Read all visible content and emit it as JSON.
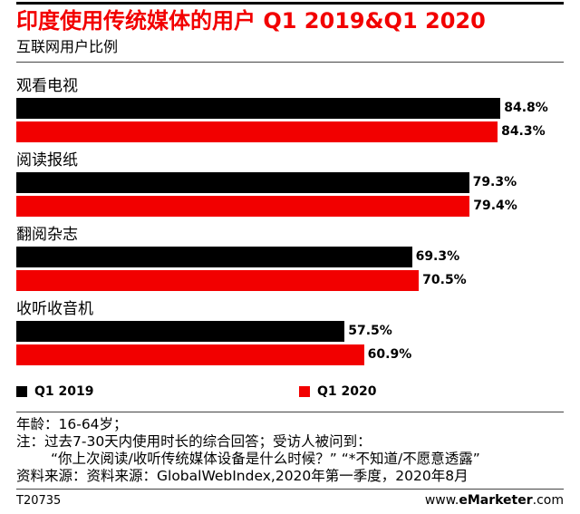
{
  "chart_data": {
    "type": "bar",
    "title": "印度使用传统媒体的用户 Q1 2019&Q1 2020",
    "subtitle": "互联网用户比例",
    "xlabel": "",
    "ylabel": "",
    "categories": [
      "观看电视",
      "阅读报纸",
      "翻阅杂志",
      "收听收音机"
    ],
    "series": [
      {
        "name": "Q1 2019",
        "color": "#000000",
        "values": [
          84.8,
          79.3,
          69.3,
          57.5
        ],
        "value_labels": [
          "84.8%",
          "79.3%",
          "69.3%",
          "57.5%"
        ]
      },
      {
        "name": "Q1 2020",
        "color": "#f20000",
        "values": [
          84.3,
          79.4,
          70.5,
          60.9
        ],
        "value_labels": [
          "84.3%",
          "79.4%",
          "70.5%",
          "60.9%"
        ]
      }
    ]
  },
  "colors": {
    "title": "#f20000",
    "text": "#000000",
    "label_on_bar": "#ffffff"
  },
  "notes": {
    "age": "年龄：16-64岁；",
    "note": "注：过去7-30天内使用时长的综合回答；受访人被问到：",
    "question": "“你上次阅读/收听传统媒体设备是什么时候？” “*不知道/不愿意透露”",
    "source": "资料来源：资料来源：GlobalWebIndex,2020年第一季度，2020年8月"
  },
  "footer": {
    "chart_id": "T20735",
    "site_prefix": "www.",
    "site_brand": "eMarketer",
    "site_suffix": ".com"
  }
}
